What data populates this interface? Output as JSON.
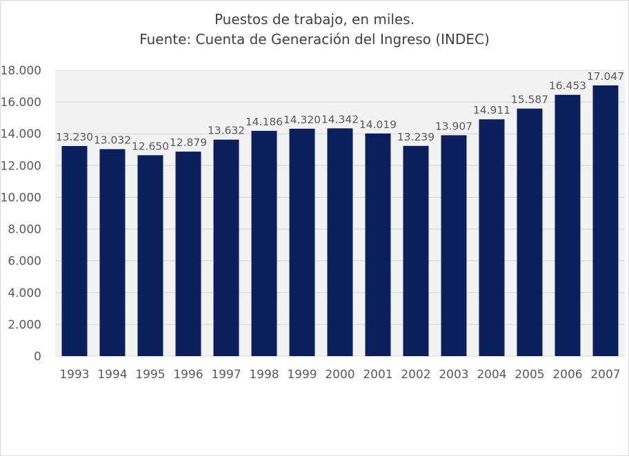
{
  "chart_data": {
    "type": "bar",
    "title": [
      "Puestos de trabajo, en miles.",
      "Fuente: Cuenta de Generación del Ingreso (INDEC)"
    ],
    "xlabel": "",
    "ylabel": "",
    "categories": [
      "1993",
      "1994",
      "1995",
      "1996",
      "1997",
      "1998",
      "1999",
      "2000",
      "2001",
      "2002",
      "2003",
      "2004",
      "2005",
      "2006",
      "2007"
    ],
    "values": [
      13230,
      13032,
      12650,
      12879,
      13632,
      14186,
      14320,
      14342,
      14019,
      13239,
      13907,
      14911,
      15587,
      16453,
      17047
    ],
    "value_labels": [
      "13.230",
      "13.032",
      "12.650",
      "12.879",
      "13.632",
      "14.186",
      "14.320",
      "14.342",
      "14.019",
      "13.239",
      "13.907",
      "14.911",
      "15.587",
      "16.453",
      "17.047"
    ],
    "ylim": [
      0,
      18000
    ],
    "yticks": [
      0,
      2000,
      4000,
      6000,
      8000,
      10000,
      12000,
      14000,
      16000,
      18000
    ],
    "ytick_labels": [
      "0",
      "2.000",
      "4.000",
      "6.000",
      "8.000",
      "10.000",
      "12.000",
      "14.000",
      "16.000",
      "18.000"
    ],
    "grid": true,
    "legend": "none",
    "colors": {
      "bar": "#0b1f5c",
      "plot_bg": "#f2f2f2",
      "grid": "#d9d9d9",
      "text": "#595959",
      "title": "#404040"
    }
  }
}
